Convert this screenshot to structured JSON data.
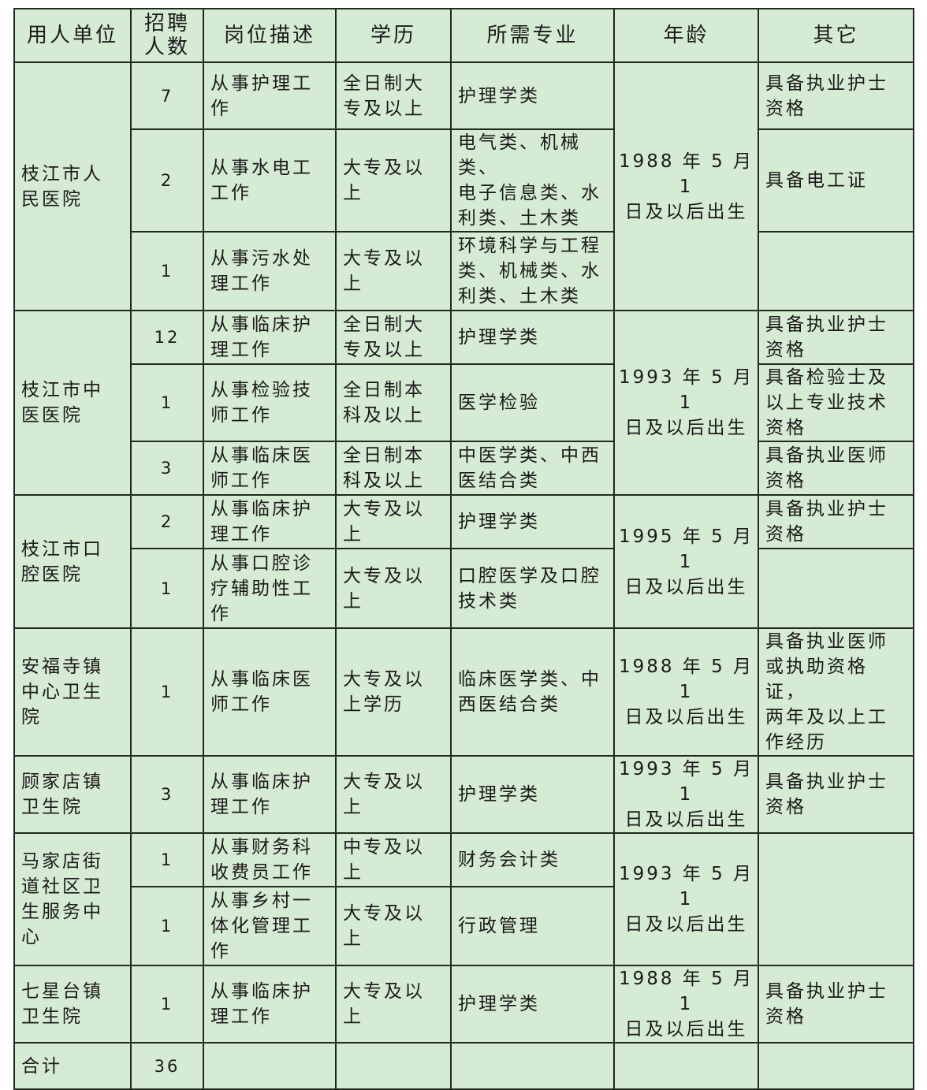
{
  "headers": [
    "用人单位",
    "招聘\n人数",
    "岗位描述",
    "学历",
    "所需专业",
    "年龄",
    "其它"
  ],
  "units": [
    {
      "name": "枝江市人\n民医院",
      "age": "1988 年 5 月 1\n日及以后出生",
      "rows": [
        {
          "count": "7",
          "desc": "从事护理工\n作",
          "edu": "全日制大\n专及以上",
          "major": "护理学类",
          "other": "具备执业护士\n资格"
        },
        {
          "count": "2",
          "desc": "从事水电工\n工作",
          "edu": "大专及以\n上",
          "major": "电气类、机械类、\n电子信息类、水\n利类、土木类",
          "other": "具备电工证"
        },
        {
          "count": "1",
          "desc": "从事污水处\n理工作",
          "edu": "大专及以\n上",
          "major": "环境科学与工程\n类、机械类、水\n利类、土木类",
          "other": ""
        }
      ]
    },
    {
      "name": "枝江市中\n医医院",
      "age": "1993 年 5 月 1\n日及以后出生",
      "rows": [
        {
          "count": "12",
          "desc": "从事临床护\n理工作",
          "edu": "全日制大\n专及以上",
          "major": "护理学类",
          "other": "具备执业护士\n资格"
        },
        {
          "count": "1",
          "desc": "从事检验技\n师工作",
          "edu": "全日制本\n科及以上",
          "major": "医学检验",
          "other": "具备检验士及\n以上专业技术\n资格"
        },
        {
          "count": "3",
          "desc": "从事临床医\n师工作",
          "edu": "全日制本\n科及以上",
          "major": "中医学类、中西\n医结合类",
          "other": "具备执业医师\n资格"
        }
      ]
    },
    {
      "name": "枝江市口\n腔医院",
      "age": "1995 年 5 月 1\n日及以后出生",
      "rows": [
        {
          "count": "2",
          "desc": "从事临床护\n理工作",
          "edu": "大专及以\n上",
          "major": "护理学类",
          "other": "具备执业护士\n资格"
        },
        {
          "count": "1",
          "desc": "从事口腔诊\n疗辅助性工\n作",
          "edu": "大专及以\n上",
          "major": "口腔医学及口腔\n技术类",
          "other": ""
        }
      ]
    },
    {
      "name": "安福寺镇\n中心卫生\n院",
      "age": "1988 年 5 月 1\n日及以后出生",
      "rows": [
        {
          "count": "1",
          "desc": "从事临床医\n师工作",
          "edu": "大专及以\n上学历",
          "major": "临床医学类、中\n西医结合类",
          "other": "具备执业医师\n或执助资格证，\n两年及以上工\n作经历"
        }
      ]
    },
    {
      "name": "顾家店镇\n卫生院",
      "age": "1993 年 5 月 1\n日及以后出生",
      "rows": [
        {
          "count": "3",
          "desc": "从事临床护\n理工作",
          "edu": "大专及以\n上",
          "major": "护理学类",
          "other": "具备执业护士\n资格"
        }
      ]
    },
    {
      "name": "马家店街\n道社区卫\n生服务中\n心",
      "age": "1993 年 5 月 1\n日及以后出生",
      "other_merged": "",
      "rows": [
        {
          "count": "1",
          "desc": "从事财务科\n收费员工作",
          "edu": "中专及以\n上",
          "major": "财务会计类"
        },
        {
          "count": "1",
          "desc": "从事乡村一\n体化管理工\n作",
          "edu": "大专及以\n上",
          "major": "行政管理"
        }
      ]
    },
    {
      "name": "七星台镇\n卫生院",
      "age": "1988 年 5 月 1\n日及以后出生",
      "rows": [
        {
          "count": "1",
          "desc": "从事临床护\n理工作",
          "edu": "大专及以\n上",
          "major": "护理学类",
          "other": "具备执业护士\n资格"
        }
      ]
    }
  ],
  "total": {
    "label": "合计",
    "count": "36"
  },
  "colors": {
    "background": "#d6ebd3",
    "border": "#1e2a1e"
  }
}
